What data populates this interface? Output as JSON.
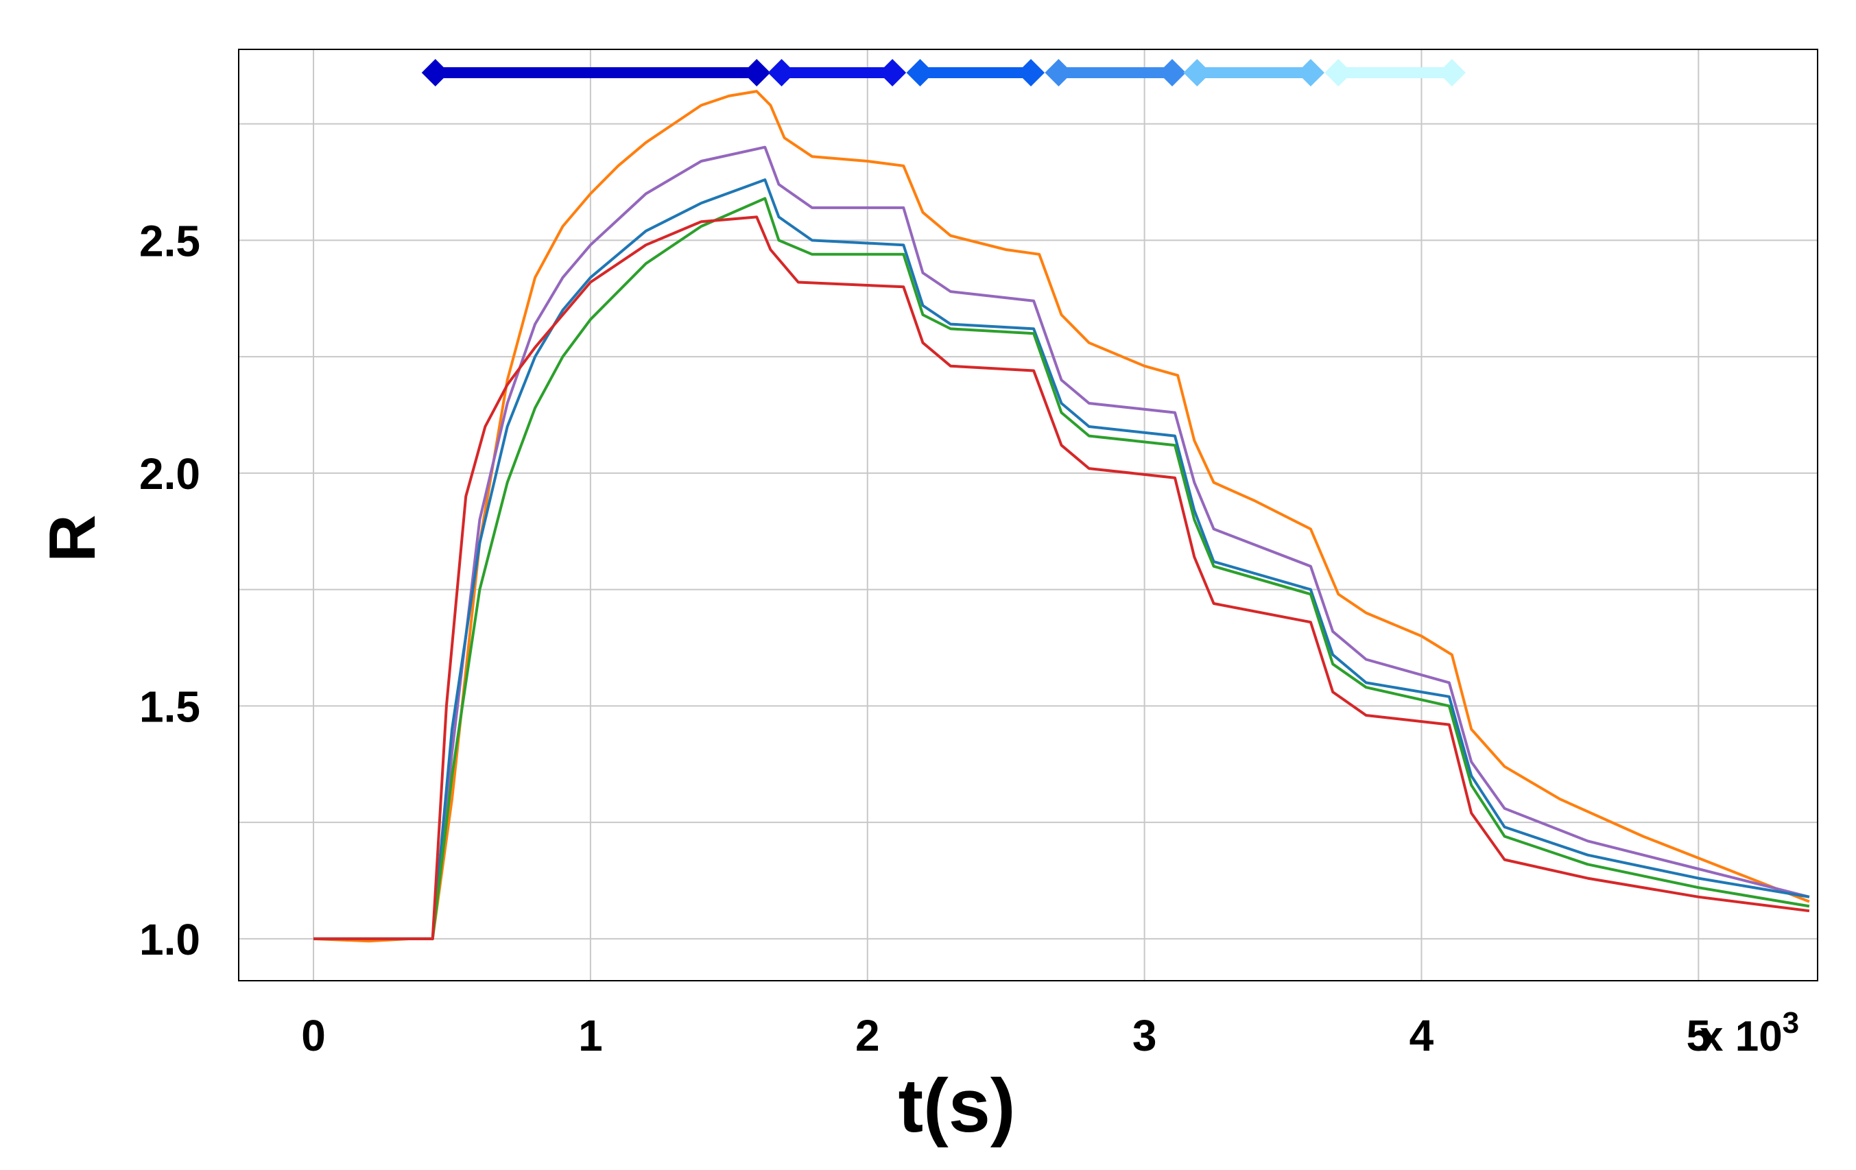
{
  "chart_data": {
    "type": "line",
    "title": "",
    "xlabel": "t(s)",
    "ylabel": "R",
    "x_multiplier": {
      "base": "x 10",
      "exponent": "3"
    },
    "xlim": [
      -0.27,
      5.43
    ],
    "ylim": [
      0.91,
      2.91
    ],
    "x_ticks": [
      0,
      1,
      2,
      3,
      4,
      5
    ],
    "x_tick_labels": [
      "0",
      "1",
      "2",
      "3",
      "4",
      "5"
    ],
    "y_ticks": [
      1.0,
      1.5,
      2.0,
      2.5
    ],
    "y_tick_labels": [
      "1.0",
      "1.5",
      "2.0",
      "2.5"
    ],
    "y_gridlines": [
      1.0,
      1.25,
      1.5,
      1.75,
      2.0,
      2.25,
      2.5,
      2.75
    ],
    "grid": true,
    "legend": "none",
    "interval_markers": [
      {
        "start": 0.44,
        "end": 1.6,
        "y": 2.86,
        "color": "#0000c8"
      },
      {
        "start": 1.69,
        "end": 2.09,
        "y": 2.86,
        "color": "#0a14e6"
      },
      {
        "start": 2.19,
        "end": 2.59,
        "y": 2.86,
        "color": "#0a5ff0"
      },
      {
        "start": 2.69,
        "end": 3.1,
        "y": 2.86,
        "color": "#3c8cf0"
      },
      {
        "start": 3.19,
        "end": 3.6,
        "y": 2.86,
        "color": "#6ec3fa"
      },
      {
        "start": 3.7,
        "end": 4.11,
        "y": 2.86,
        "color": "#c8faff"
      }
    ],
    "series": [
      {
        "color": "#ff7f0e",
        "points": [
          [
            0,
            1.0
          ],
          [
            0.2,
            0.995
          ],
          [
            0.35,
            1.0
          ],
          [
            0.43,
            1.0
          ],
          [
            0.5,
            1.3
          ],
          [
            0.6,
            1.85
          ],
          [
            0.7,
            2.2
          ],
          [
            0.8,
            2.42
          ],
          [
            0.9,
            2.53
          ],
          [
            1.0,
            2.6
          ],
          [
            1.1,
            2.66
          ],
          [
            1.2,
            2.71
          ],
          [
            1.3,
            2.75
          ],
          [
            1.4,
            2.79
          ],
          [
            1.5,
            2.81
          ],
          [
            1.6,
            2.82
          ],
          [
            1.65,
            2.79
          ],
          [
            1.7,
            2.72
          ],
          [
            1.8,
            2.68
          ],
          [
            2.0,
            2.67
          ],
          [
            2.13,
            2.66
          ],
          [
            2.2,
            2.56
          ],
          [
            2.3,
            2.51
          ],
          [
            2.5,
            2.48
          ],
          [
            2.62,
            2.47
          ],
          [
            2.7,
            2.34
          ],
          [
            2.8,
            2.28
          ],
          [
            3.0,
            2.23
          ],
          [
            3.12,
            2.21
          ],
          [
            3.18,
            2.07
          ],
          [
            3.25,
            1.98
          ],
          [
            3.4,
            1.94
          ],
          [
            3.6,
            1.88
          ],
          [
            3.7,
            1.74
          ],
          [
            3.8,
            1.7
          ],
          [
            4.0,
            1.65
          ],
          [
            4.11,
            1.61
          ],
          [
            4.18,
            1.45
          ],
          [
            4.3,
            1.37
          ],
          [
            4.5,
            1.3
          ],
          [
            4.8,
            1.22
          ],
          [
            5.1,
            1.15
          ],
          [
            5.4,
            1.08
          ]
        ]
      },
      {
        "color": "#9467bd",
        "points": [
          [
            0,
            1.0
          ],
          [
            0.43,
            1.0
          ],
          [
            0.5,
            1.4
          ],
          [
            0.6,
            1.9
          ],
          [
            0.7,
            2.15
          ],
          [
            0.8,
            2.32
          ],
          [
            0.9,
            2.42
          ],
          [
            1.0,
            2.49
          ],
          [
            1.2,
            2.6
          ],
          [
            1.4,
            2.67
          ],
          [
            1.63,
            2.7
          ],
          [
            1.68,
            2.62
          ],
          [
            1.8,
            2.57
          ],
          [
            2.13,
            2.57
          ],
          [
            2.2,
            2.43
          ],
          [
            2.3,
            2.39
          ],
          [
            2.6,
            2.37
          ],
          [
            2.7,
            2.2
          ],
          [
            2.8,
            2.15
          ],
          [
            3.11,
            2.13
          ],
          [
            3.18,
            1.98
          ],
          [
            3.25,
            1.88
          ],
          [
            3.6,
            1.8
          ],
          [
            3.68,
            1.66
          ],
          [
            3.8,
            1.6
          ],
          [
            4.1,
            1.55
          ],
          [
            4.18,
            1.38
          ],
          [
            4.3,
            1.28
          ],
          [
            4.6,
            1.21
          ],
          [
            5.0,
            1.15
          ],
          [
            5.4,
            1.09
          ]
        ]
      },
      {
        "color": "#1f77b4",
        "points": [
          [
            0,
            1.0
          ],
          [
            0.43,
            1.0
          ],
          [
            0.5,
            1.45
          ],
          [
            0.6,
            1.85
          ],
          [
            0.7,
            2.1
          ],
          [
            0.8,
            2.25
          ],
          [
            0.9,
            2.35
          ],
          [
            1.0,
            2.42
          ],
          [
            1.2,
            2.52
          ],
          [
            1.4,
            2.58
          ],
          [
            1.63,
            2.63
          ],
          [
            1.68,
            2.55
          ],
          [
            1.8,
            2.5
          ],
          [
            2.13,
            2.49
          ],
          [
            2.2,
            2.36
          ],
          [
            2.3,
            2.32
          ],
          [
            2.6,
            2.31
          ],
          [
            2.7,
            2.15
          ],
          [
            2.8,
            2.1
          ],
          [
            3.11,
            2.08
          ],
          [
            3.18,
            1.92
          ],
          [
            3.25,
            1.81
          ],
          [
            3.6,
            1.75
          ],
          [
            3.68,
            1.61
          ],
          [
            3.8,
            1.55
          ],
          [
            4.1,
            1.52
          ],
          [
            4.18,
            1.35
          ],
          [
            4.3,
            1.24
          ],
          [
            4.6,
            1.18
          ],
          [
            5.0,
            1.13
          ],
          [
            5.4,
            1.09
          ]
        ]
      },
      {
        "color": "#2ca02c",
        "points": [
          [
            0,
            1.0
          ],
          [
            0.43,
            1.0
          ],
          [
            0.5,
            1.35
          ],
          [
            0.6,
            1.75
          ],
          [
            0.7,
            1.98
          ],
          [
            0.8,
            2.14
          ],
          [
            0.9,
            2.25
          ],
          [
            1.0,
            2.33
          ],
          [
            1.2,
            2.45
          ],
          [
            1.4,
            2.53
          ],
          [
            1.63,
            2.59
          ],
          [
            1.68,
            2.5
          ],
          [
            1.8,
            2.47
          ],
          [
            2.13,
            2.47
          ],
          [
            2.2,
            2.34
          ],
          [
            2.3,
            2.31
          ],
          [
            2.6,
            2.3
          ],
          [
            2.7,
            2.13
          ],
          [
            2.8,
            2.08
          ],
          [
            3.11,
            2.06
          ],
          [
            3.18,
            1.9
          ],
          [
            3.25,
            1.8
          ],
          [
            3.6,
            1.74
          ],
          [
            3.68,
            1.59
          ],
          [
            3.8,
            1.54
          ],
          [
            4.1,
            1.5
          ],
          [
            4.18,
            1.33
          ],
          [
            4.3,
            1.22
          ],
          [
            4.6,
            1.16
          ],
          [
            5.0,
            1.11
          ],
          [
            5.4,
            1.07
          ]
        ]
      },
      {
        "color": "#d62728",
        "points": [
          [
            0,
            1.0
          ],
          [
            0.43,
            1.0
          ],
          [
            0.48,
            1.5
          ],
          [
            0.55,
            1.95
          ],
          [
            0.62,
            2.1
          ],
          [
            0.7,
            2.19
          ],
          [
            0.8,
            2.27
          ],
          [
            0.9,
            2.34
          ],
          [
            1.0,
            2.41
          ],
          [
            1.2,
            2.49
          ],
          [
            1.4,
            2.54
          ],
          [
            1.6,
            2.55
          ],
          [
            1.65,
            2.48
          ],
          [
            1.75,
            2.41
          ],
          [
            2.13,
            2.4
          ],
          [
            2.2,
            2.28
          ],
          [
            2.3,
            2.23
          ],
          [
            2.6,
            2.22
          ],
          [
            2.7,
            2.06
          ],
          [
            2.8,
            2.01
          ],
          [
            3.11,
            1.99
          ],
          [
            3.18,
            1.82
          ],
          [
            3.25,
            1.72
          ],
          [
            3.6,
            1.68
          ],
          [
            3.68,
            1.53
          ],
          [
            3.8,
            1.48
          ],
          [
            4.1,
            1.46
          ],
          [
            4.18,
            1.27
          ],
          [
            4.3,
            1.17
          ],
          [
            4.6,
            1.13
          ],
          [
            5.0,
            1.09
          ],
          [
            5.4,
            1.06
          ]
        ]
      }
    ]
  }
}
